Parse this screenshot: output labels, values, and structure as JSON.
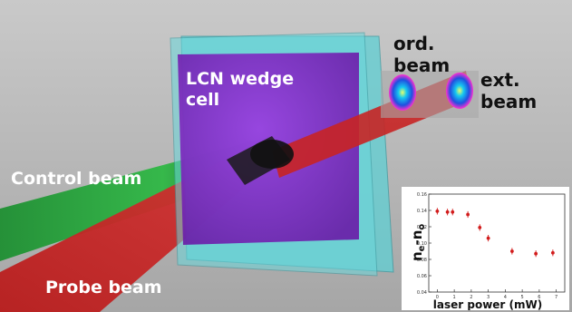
{
  "labels": {
    "cell": "LCN wedge cell",
    "ordinary": "ord. beam",
    "extraordinary": "ext. beam",
    "control": "Control beam",
    "probe": "Probe beam"
  },
  "colors": {
    "control_beam": "#22a23a",
    "probe_beam": "#d02a2a",
    "cell_glass": "#5fd0d4",
    "cell_core": "#8a2ad0",
    "spot_core": "#16c8f0",
    "spot_halo": "#ff2fd0",
    "data_points": "#d21c1c"
  },
  "chart_data": {
    "type": "scatter",
    "title": "",
    "xlabel": "laser power (mW)",
    "ylabel": "n",
    "ylabel_sub_1": "e",
    "ylabel_dash": "-n",
    "ylabel_sub_2": "o",
    "xlim": [
      -0.5,
      7.5
    ],
    "ylim": [
      0.04,
      0.16
    ],
    "xticks": [
      "0",
      "1",
      "2",
      "3",
      "4",
      "5",
      "6",
      "7"
    ],
    "yticks": [
      "0.04",
      "0.06",
      "0.08",
      "0.10",
      "0.12",
      "0.14",
      "0.16"
    ],
    "grid": false,
    "legend": "none",
    "x": [
      0,
      0.6,
      0.9,
      1.8,
      2.5,
      3.0,
      4.4,
      5.8,
      6.8
    ],
    "y": [
      0.139,
      0.138,
      0.138,
      0.135,
      0.119,
      0.106,
      0.09,
      0.087,
      0.088
    ],
    "yerr": [
      0.004,
      0.004,
      0.004,
      0.004,
      0.004,
      0.004,
      0.004,
      0.004,
      0.004
    ]
  }
}
